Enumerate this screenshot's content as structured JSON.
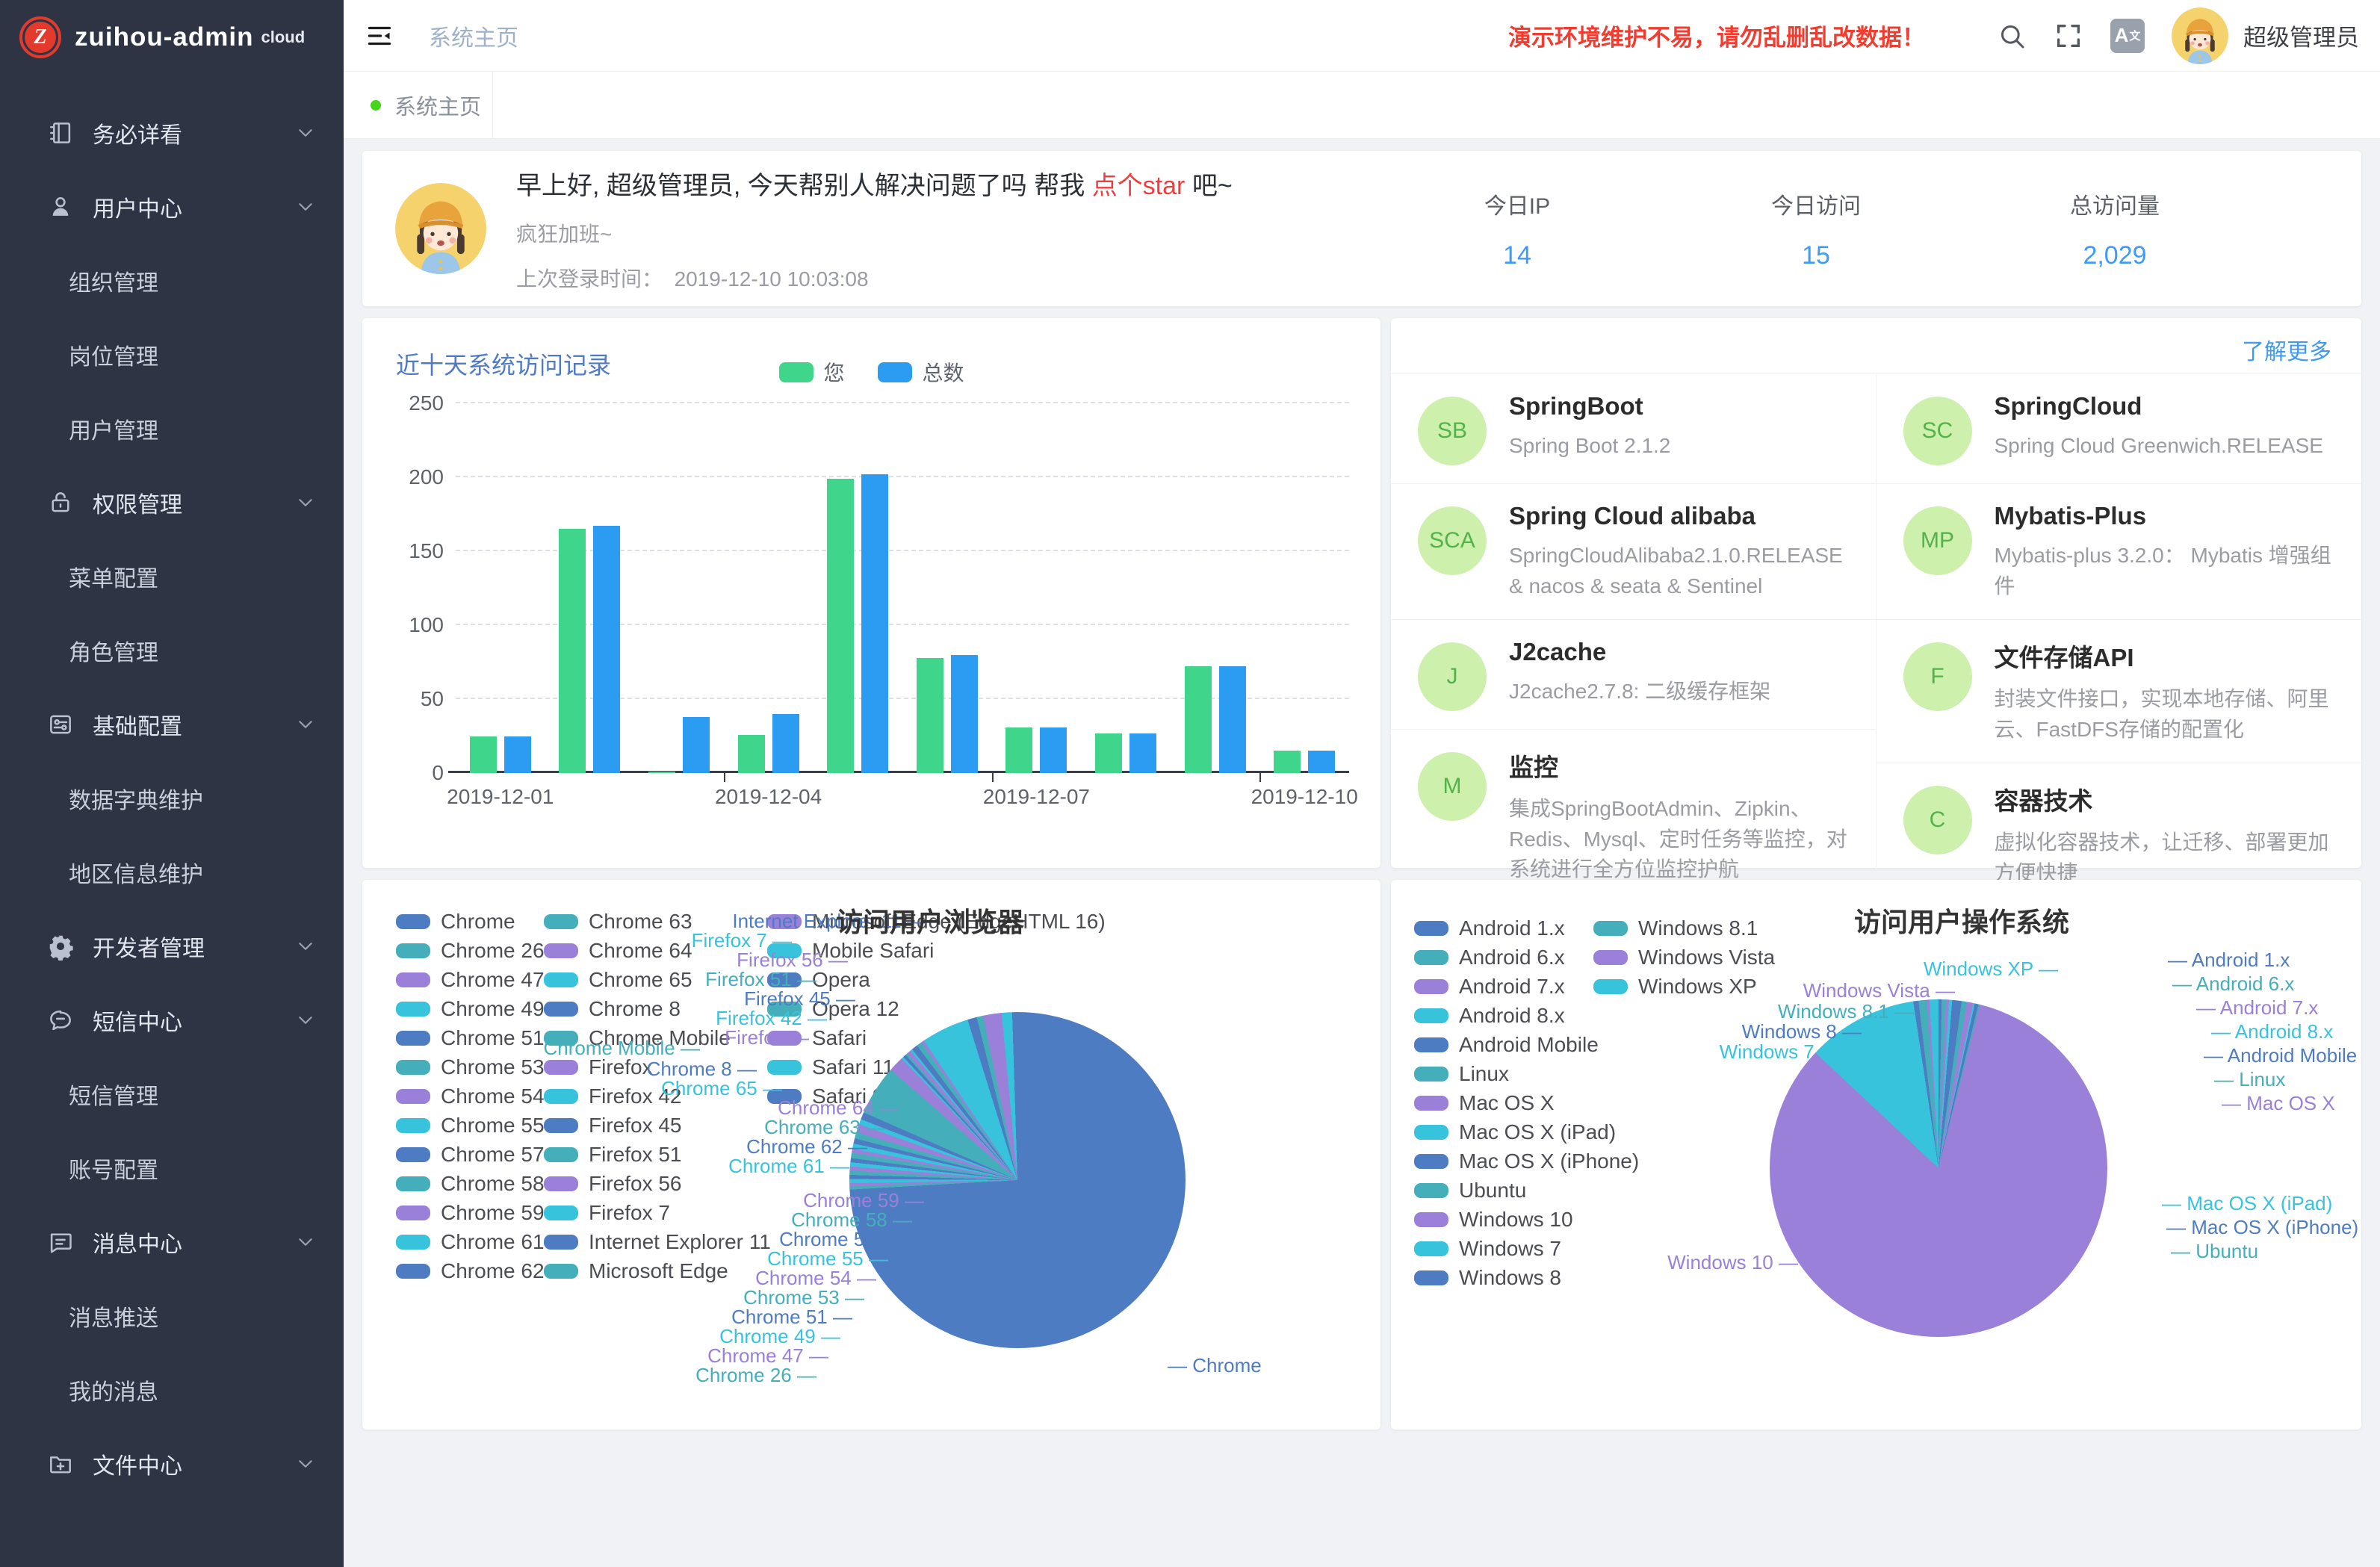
{
  "brand": {
    "name": "zuihou-admin",
    "suffix": "cloud",
    "logo_letter": "Z",
    "color": "#e23b2e"
  },
  "sidebar": {
    "items": [
      {
        "type": "group",
        "icon": "notebook-icon",
        "label": "务必详看",
        "chevron": "down"
      },
      {
        "type": "group",
        "icon": "user-icon",
        "label": "用户中心",
        "chevron": "down"
      },
      {
        "type": "sub",
        "label": "组织管理"
      },
      {
        "type": "sub",
        "label": "岗位管理"
      },
      {
        "type": "sub",
        "label": "用户管理"
      },
      {
        "type": "group",
        "icon": "lock-icon",
        "label": "权限管理",
        "chevron": "down"
      },
      {
        "type": "sub",
        "label": "菜单配置"
      },
      {
        "type": "sub",
        "label": "角色管理"
      },
      {
        "type": "group",
        "icon": "config-card-icon",
        "label": "基础配置",
        "chevron": "down"
      },
      {
        "type": "sub",
        "label": "数据字典维护"
      },
      {
        "type": "sub",
        "label": "地区信息维护"
      },
      {
        "type": "group",
        "icon": "gear-icon",
        "label": "开发者管理",
        "chevron": "down"
      },
      {
        "type": "group",
        "icon": "sms-icon",
        "label": "短信中心",
        "chevron": "down"
      },
      {
        "type": "sub",
        "label": "短信管理"
      },
      {
        "type": "sub",
        "label": "账号配置"
      },
      {
        "type": "group",
        "icon": "message-icon",
        "label": "消息中心",
        "chevron": "down"
      },
      {
        "type": "sub",
        "label": "消息推送"
      },
      {
        "type": "sub",
        "label": "我的消息"
      },
      {
        "type": "group",
        "icon": "folder-plus-icon",
        "label": "文件中心",
        "chevron": "down"
      }
    ]
  },
  "topbar": {
    "breadcrumb": "系统主页",
    "warning": "演示环境维护不易，请勿乱删乱改数据！",
    "font_badge": "A文",
    "username": "超级管理员"
  },
  "tabs": [
    {
      "label": "系统主页",
      "active": true
    }
  ],
  "greeting": {
    "prefix": "早上好, 超级管理员, 今天帮别人解决问题了吗 帮我 ",
    "link": "点个star",
    "suffix": " 吧~",
    "subtitle": "疯狂加班~",
    "last_login_label": "上次登录时间：",
    "last_login_time": "2019-12-10 10:03:08"
  },
  "stats": [
    {
      "label": "今日IP",
      "value": "14"
    },
    {
      "label": "今日访问",
      "value": "15"
    },
    {
      "label": "总访问量",
      "value": "2,029"
    }
  ],
  "tech": {
    "more_label": "了解更多",
    "left": [
      {
        "initials": "SB",
        "title": "SpringBoot",
        "desc": "Spring Boot 2.1.2"
      },
      {
        "initials": "SCA",
        "title": "Spring Cloud alibaba",
        "desc": "SpringCloudAlibaba2.1.0.RELEASE & nacos & seata & Sentinel"
      },
      {
        "initials": "J",
        "title": "J2cache",
        "desc": "J2cache2.7.8: 二级缓存框架"
      },
      {
        "initials": "M",
        "title": "监控",
        "desc": "集成SpringBootAdmin、Zipkin、Redis、Mysql、定时任务等监控，对系统进行全方位监控护航"
      }
    ],
    "right": [
      {
        "initials": "SC",
        "title": "SpringCloud",
        "desc": "Spring Cloud Greenwich.RELEASE"
      },
      {
        "initials": "MP",
        "title": "Mybatis-Plus",
        "desc": "Mybatis-plus 3.2.0： Mybatis 增强组件"
      },
      {
        "initials": "F",
        "title": "文件存储API",
        "desc": "封装文件接口，实现本地存储、阿里云、FastDFS存储的配置化"
      },
      {
        "initials": "C",
        "title": "容器技术",
        "desc": "虚拟化容器技术，让迁移、部署更加方便快捷"
      }
    ]
  },
  "chart_data": [
    {
      "type": "bar",
      "title": "近十天系统访问记录",
      "categories": [
        "2019-12-01",
        "2019-12-02",
        "2019-12-03",
        "2019-12-04",
        "2019-12-05",
        "2019-12-06",
        "2019-12-07",
        "2019-12-08",
        "2019-12-09",
        "2019-12-10"
      ],
      "series": [
        {
          "name": "您",
          "color": "#3fd68c",
          "values": [
            25,
            165,
            1,
            26,
            199,
            78,
            31,
            27,
            72,
            15
          ]
        },
        {
          "name": "总数",
          "color": "#2b9cf2",
          "values": [
            25,
            167,
            38,
            40,
            202,
            80,
            31,
            27,
            72,
            15
          ]
        }
      ],
      "ylim": [
        0,
        250
      ],
      "yticks": [
        0,
        50,
        100,
        150,
        200,
        250
      ],
      "x_labels_shown": [
        "2019-12-01",
        "2019-12-04",
        "2019-12-07",
        "2019-12-10"
      ],
      "grid": true,
      "legend_position": "top-center"
    },
    {
      "type": "pie",
      "title": "访问用户浏览器",
      "palette": [
        "#4e7cc2",
        "#44afba",
        "#9a80d8",
        "#38c3dd"
      ],
      "legend_chunk_sizes": [
        13,
        13,
        7
      ],
      "slices": [
        {
          "name": "Chrome",
          "value": 74.1
        },
        {
          "name": "Chrome 26",
          "value": 0.3
        },
        {
          "name": "Chrome 47",
          "value": 0.3
        },
        {
          "name": "Chrome 49",
          "value": 0.4
        },
        {
          "name": "Chrome 51",
          "value": 0.4
        },
        {
          "name": "Chrome 53",
          "value": 0.4
        },
        {
          "name": "Chrome 54",
          "value": 0.4
        },
        {
          "name": "Chrome 55",
          "value": 0.4
        },
        {
          "name": "Chrome 57",
          "value": 0.4
        },
        {
          "name": "Chrome 58",
          "value": 0.5
        },
        {
          "name": "Chrome 59",
          "value": 0.4
        },
        {
          "name": "Chrome 61",
          "value": 0.5
        },
        {
          "name": "Chrome 62",
          "value": 0.5
        },
        {
          "name": "Chrome 63",
          "value": 0.6
        },
        {
          "name": "Chrome 64",
          "value": 0.8
        },
        {
          "name": "Chrome 65",
          "value": 0.5
        },
        {
          "name": "Chrome 8",
          "value": 0.7
        },
        {
          "name": "Chrome Mobile",
          "value": 4.8
        },
        {
          "name": "Firefox",
          "value": 1.5
        },
        {
          "name": "Firefox 42",
          "value": 0.2
        },
        {
          "name": "Firefox 45",
          "value": 0.3
        },
        {
          "name": "Firefox 51",
          "value": 0.2
        },
        {
          "name": "Firefox 56",
          "value": 0.4
        },
        {
          "name": "Firefox 7",
          "value": 0.2
        },
        {
          "name": "Internet Explorer 11",
          "value": 0.6
        },
        {
          "name": "Microsoft Edge",
          "value": 0.5
        },
        {
          "name": "Microsoft Edge (EdgeHTML 16)",
          "value": 0.3
        },
        {
          "name": "Mobile Safari",
          "value": 4.6
        },
        {
          "name": "Opera",
          "value": 0.9
        },
        {
          "name": "Opera 12",
          "value": 0.6
        },
        {
          "name": "Safari",
          "value": 1.8
        },
        {
          "name": "Safari 11",
          "value": 1.0
        },
        {
          "name": "Safari 9",
          "value": 0.5
        }
      ],
      "callouts": {
        "left": [
          "Internet Explorer 11",
          "Firefox 7",
          "Firefox 56",
          "Firefox 51",
          "Firefox 45",
          "Firefox 42",
          "Firefox",
          "Chrome Mobile",
          "Chrome 8",
          "Chrome 65",
          "Chrome 64",
          "Chrome 63",
          "Chrome 62",
          "Chrome 61",
          "Chrome 59",
          "Chrome 58",
          "Chrome 57",
          "Chrome 55",
          "Chrome 54",
          "Chrome 53",
          "Chrome 51",
          "Chrome 49",
          "Chrome 47",
          "Chrome 26"
        ],
        "right": [
          "Chrome"
        ]
      }
    },
    {
      "type": "pie",
      "title": "访问用户操作系统",
      "palette": [
        "#4e7cc2",
        "#44afba",
        "#9a80d8",
        "#38c3dd"
      ],
      "legend_chunk_sizes": [
        13,
        3
      ],
      "slices": [
        {
          "name": "Android 1.x",
          "value": 0.3
        },
        {
          "name": "Android 6.x",
          "value": 0.4
        },
        {
          "name": "Android 7.x",
          "value": 0.3
        },
        {
          "name": "Android 8.x",
          "value": 0.3
        },
        {
          "name": "Android Mobile",
          "value": 0.9
        },
        {
          "name": "Linux",
          "value": 0.5
        },
        {
          "name": "Mac OS X",
          "value": 0.6
        },
        {
          "name": "Mac OS X (iPad)",
          "value": 0.15
        },
        {
          "name": "Mac OS X (iPhone)",
          "value": 0.35
        },
        {
          "name": "Ubuntu",
          "value": 0.15
        },
        {
          "name": "Windows 10",
          "value": 83.0
        },
        {
          "name": "Windows 7",
          "value": 10.6
        },
        {
          "name": "Windows 8",
          "value": 0.5
        },
        {
          "name": "Windows 8.1",
          "value": 0.8
        },
        {
          "name": "Windows Vista",
          "value": 0.25
        },
        {
          "name": "Windows XP",
          "value": 0.85
        }
      ],
      "callouts": {
        "left": [
          "Windows XP",
          "Windows Vista",
          "Windows 8.1",
          "Windows 8",
          "Windows 7",
          "Windows 10"
        ],
        "right": [
          "Android 1.x",
          "Android 6.x",
          "Android 7.x",
          "Android 8.x",
          "Android Mobile",
          "Linux",
          "Mac OS X",
          "Mac OS X (iPad)",
          "Mac OS X (iPhone)",
          "Ubuntu"
        ]
      }
    }
  ]
}
